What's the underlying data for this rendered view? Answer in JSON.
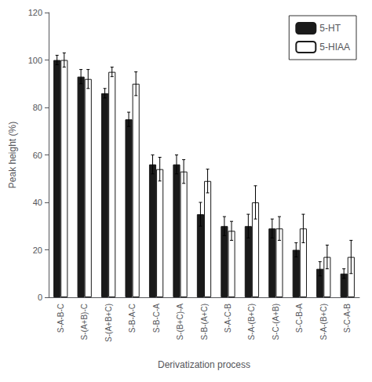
{
  "chart_data": {
    "type": "bar",
    "xlabel": "Derivatization process",
    "ylabel": "Peak height (%)",
    "categories": [
      "S-A-B-C",
      "S-(A+B)-C",
      "S-(A+B+C)",
      "S-B-A-C",
      "S-B-C-A",
      "S-(B+C)-A",
      "S-B-(A+C)",
      "S-A-C-B",
      "S-A-(B+C)",
      "S-C-(A+B)",
      "S-C-B-A",
      "S-A-(B+C)",
      "S-C-A-B"
    ],
    "series": [
      {
        "name": "5-HT",
        "color": "#1a1a1a",
        "values": [
          100,
          93,
          86,
          75,
          56,
          56,
          35,
          30,
          30,
          29,
          20,
          12,
          10
        ],
        "errors": [
          2,
          3,
          2,
          3,
          4,
          4,
          5,
          4,
          5,
          4,
          3,
          3,
          2
        ]
      },
      {
        "name": "5-HIAA",
        "color": "#ffffff",
        "values": [
          100,
          92,
          95,
          90,
          54,
          53,
          49,
          28,
          40,
          29,
          29,
          17,
          17
        ],
        "errors": [
          3,
          4,
          2,
          5,
          5,
          5,
          5,
          4,
          7,
          5,
          6,
          5,
          7
        ]
      }
    ],
    "ylim": [
      0,
      120
    ],
    "yticks": [
      0,
      20,
      40,
      60,
      80,
      100,
      120
    ],
    "grid": false,
    "legend": "upper right"
  }
}
